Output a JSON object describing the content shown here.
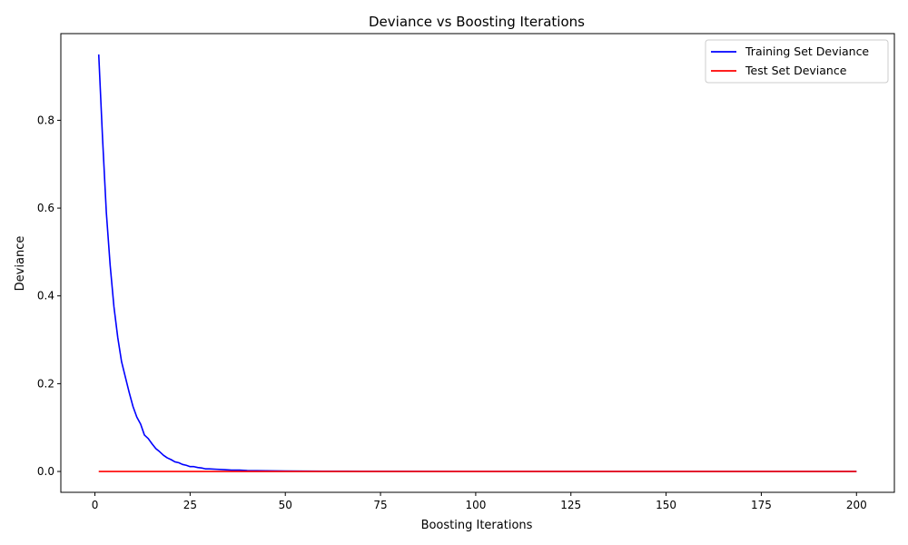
{
  "chart_data": {
    "type": "line",
    "title": "Deviance vs Boosting Iterations",
    "xlabel": "Boosting Iterations",
    "ylabel": "Deviance",
    "xlim": [
      -8.95,
      209.95
    ],
    "ylim": [
      -0.0475,
      0.9975
    ],
    "xticks": [
      0,
      25,
      50,
      75,
      100,
      125,
      150,
      175,
      200
    ],
    "yticks": [
      0.0,
      0.2,
      0.4,
      0.6,
      0.8
    ],
    "ytick_labels": [
      "0.0",
      "0.2",
      "0.4",
      "0.6",
      "0.8"
    ],
    "grid": false,
    "legend_position": "top-right",
    "series": [
      {
        "name": "Training Set Deviance",
        "color": "#0000ff",
        "x": [
          1,
          2,
          3,
          4,
          5,
          6,
          7,
          8,
          9,
          10,
          11,
          12,
          13,
          14,
          15,
          16,
          17,
          18,
          19,
          20,
          21,
          22,
          23,
          24,
          25,
          26,
          27,
          28,
          29,
          30,
          32,
          34,
          36,
          38,
          40,
          45,
          50,
          55,
          60,
          70,
          80,
          100,
          125,
          150,
          175,
          200
        ],
        "y": [
          0.95,
          0.76,
          0.59,
          0.47,
          0.375,
          0.305,
          0.25,
          0.215,
          0.18,
          0.148,
          0.124,
          0.108,
          0.083,
          0.075,
          0.063,
          0.052,
          0.045,
          0.037,
          0.031,
          0.027,
          0.022,
          0.02,
          0.016,
          0.014,
          0.011,
          0.011,
          0.009,
          0.008,
          0.006,
          0.006,
          0.005,
          0.004,
          0.003,
          0.003,
          0.002,
          0.0015,
          0.001,
          0.0008,
          0.0005,
          0.0003,
          0.0002,
          0.0001,
          0.0,
          0.0,
          0.0,
          0.0
        ]
      },
      {
        "name": "Test Set Deviance",
        "color": "#ff0000",
        "x": [
          1,
          25,
          50,
          75,
          100,
          125,
          150,
          175,
          200
        ],
        "y": [
          0.0,
          0.0,
          0.0,
          0.0,
          0.0,
          0.0,
          0.0,
          0.0,
          0.0
        ]
      }
    ]
  }
}
